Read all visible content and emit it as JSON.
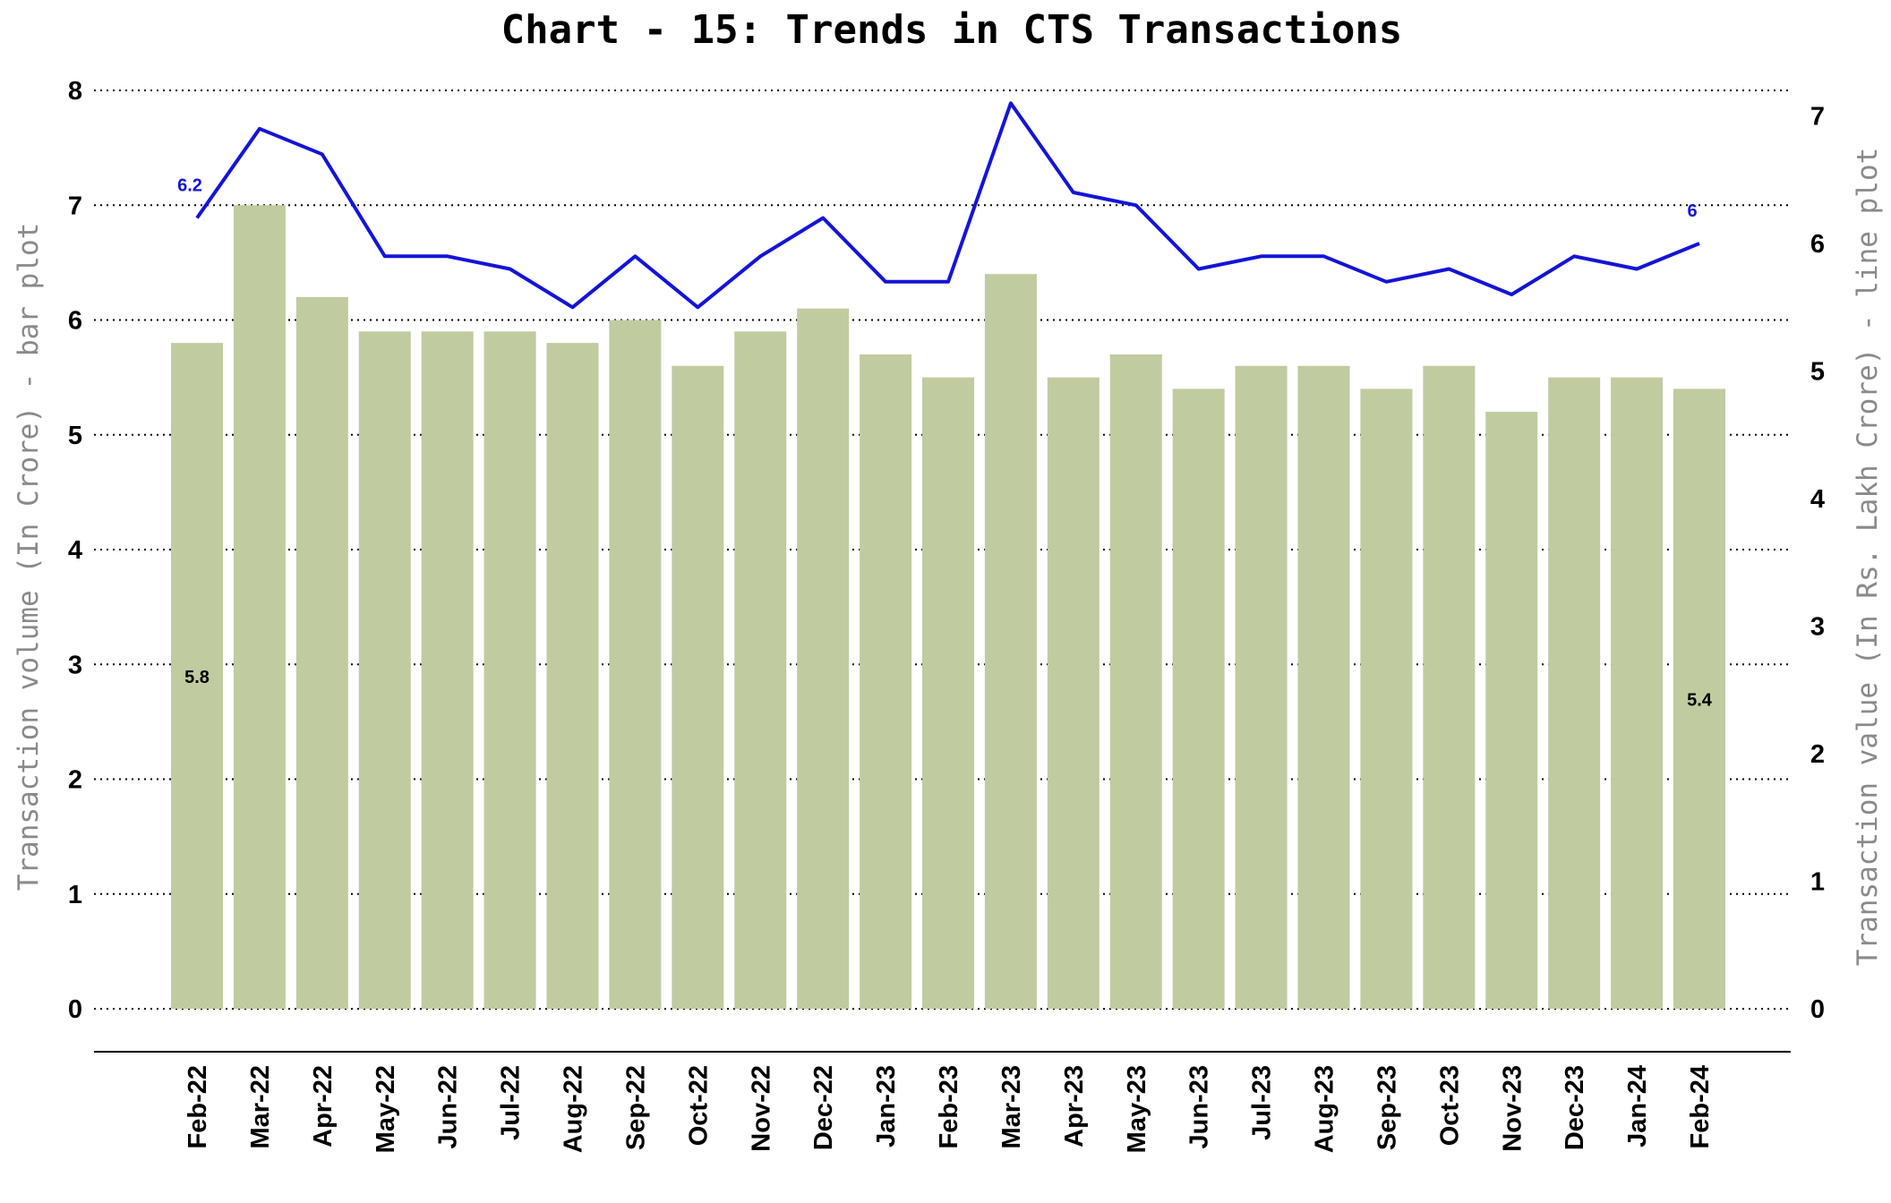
{
  "chart_data": {
    "type": "bar",
    "title": "Chart - 15: Trends in CTS Transactions",
    "ylabel_left": "Transaction volume (In Crore) - bar plot",
    "ylabel_right": "Transaction value (In Rs. Lakh Crore) - line plot",
    "categories": [
      "Feb-22",
      "Mar-22",
      "Apr-22",
      "May-22",
      "Jun-22",
      "Jul-22",
      "Aug-22",
      "Sep-22",
      "Oct-22",
      "Nov-22",
      "Dec-22",
      "Jan-23",
      "Feb-23",
      "Mar-23",
      "Apr-23",
      "May-23",
      "Jun-23",
      "Jul-23",
      "Aug-23",
      "Sep-23",
      "Oct-23",
      "Nov-23",
      "Dec-23",
      "Jan-24",
      "Feb-24"
    ],
    "left_ticks": [
      "0",
      "1",
      "2",
      "3",
      "4",
      "5",
      "6",
      "7",
      "8"
    ],
    "right_ticks": [
      "0",
      "1",
      "2",
      "3",
      "4",
      "5",
      "6",
      "7"
    ],
    "ylim_left": [
      0,
      8
    ],
    "ylim_right": [
      0,
      7.2
    ],
    "grid": "horizontal dotted",
    "colors": {
      "bar": "#c0cba0",
      "line": "#1414d8",
      "grid": "#000000"
    },
    "series": [
      {
        "name": "Transaction volume",
        "type": "bar",
        "axis": "left",
        "values": [
          5.8,
          7.0,
          6.2,
          5.9,
          5.9,
          5.9,
          5.8,
          6.0,
          5.6,
          5.9,
          6.1,
          5.7,
          5.5,
          6.4,
          5.5,
          5.7,
          5.4,
          5.6,
          5.6,
          5.4,
          5.6,
          5.2,
          5.5,
          5.5,
          5.4
        ],
        "labels": [
          {
            "category": "Feb-22",
            "text": "5.8"
          },
          {
            "category": "Feb-24",
            "text": "5.4"
          }
        ]
      },
      {
        "name": "Transaction value",
        "type": "line",
        "axis": "right",
        "values": [
          6.2,
          6.9,
          6.7,
          5.9,
          5.9,
          5.8,
          5.5,
          5.9,
          5.5,
          5.9,
          6.2,
          5.7,
          5.7,
          7.1,
          6.4,
          6.3,
          5.8,
          5.9,
          5.9,
          5.7,
          5.8,
          5.6,
          5.9,
          5.8,
          6.0
        ],
        "labels": [
          {
            "category": "Feb-22",
            "text": "6.2"
          },
          {
            "category": "Feb-24",
            "text": "6"
          }
        ]
      }
    ]
  }
}
